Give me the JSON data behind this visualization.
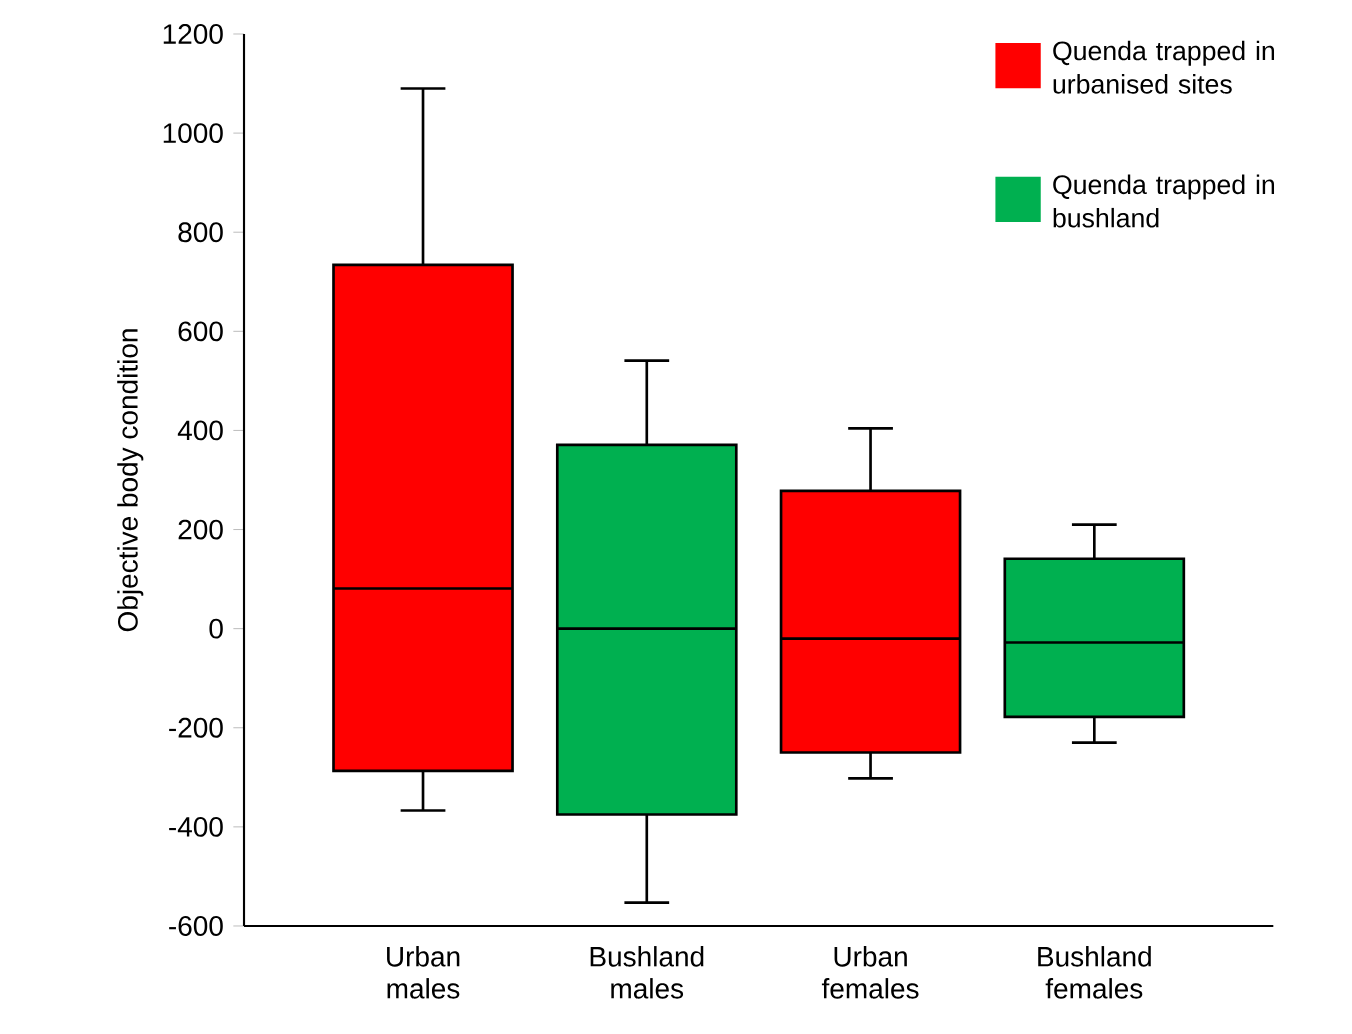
{
  "chart_data": {
    "type": "box",
    "ylabel": "Objective body condition",
    "categories": [
      "Urban males",
      "Bushland males",
      "Urban females",
      "Bushland females"
    ],
    "ylim": [
      -600,
      1200
    ],
    "yticks": [
      -600,
      -400,
      -200,
      0,
      200,
      400,
      600,
      800,
      1000,
      1200
    ],
    "legend": "top right",
    "series": [
      {
        "name": "Quenda trapped in urbanised sites",
        "color": "#ff0000",
        "boxes": [
          {
            "low": -367,
            "q1": -287,
            "median": 81,
            "q3": 734,
            "high": 1090
          },
          null,
          {
            "low": -302,
            "q1": -250,
            "median": -20,
            "q3": 278,
            "high": 404
          },
          null
        ]
      },
      {
        "name": "Quenda trapped in bushland",
        "color": "#00b050",
        "boxes": [
          null,
          {
            "low": -553,
            "q1": -375,
            "median": 0,
            "q3": 371,
            "high": 541
          },
          null,
          {
            "low": -230,
            "q1": -178,
            "median": -28,
            "q3": 141,
            "high": 210
          }
        ]
      }
    ]
  }
}
